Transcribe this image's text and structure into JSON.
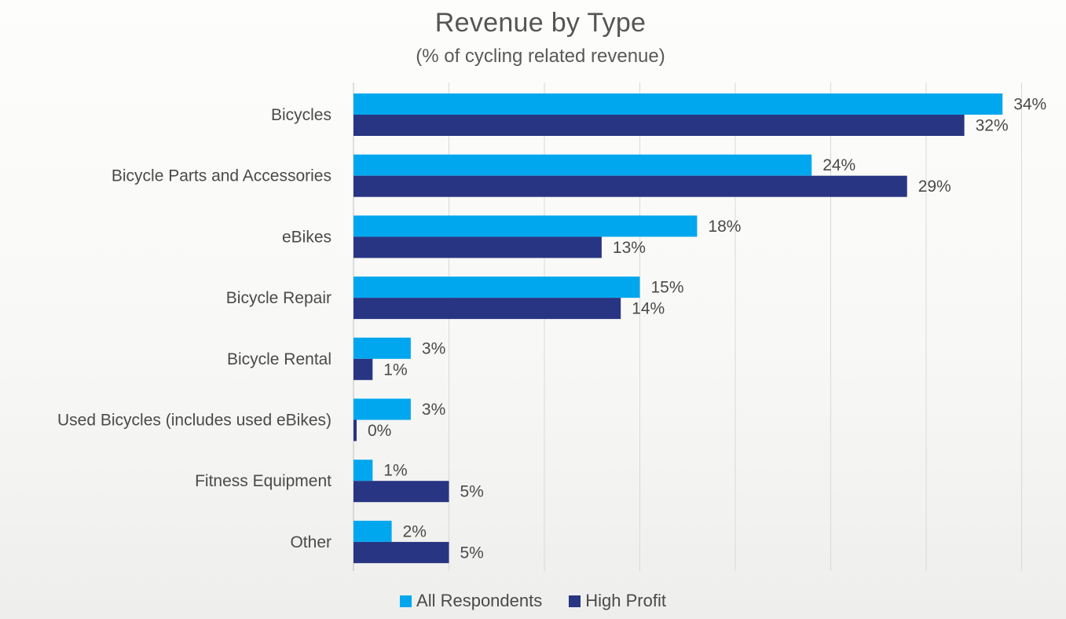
{
  "chart_data": {
    "type": "bar",
    "orientation": "horizontal",
    "title": "Revenue by Type",
    "subtitle": "(% of cycling related revenue)",
    "categories": [
      "Bicycles",
      "Bicycle Parts and Accessories",
      "eBikes",
      "Bicycle Repair",
      "Bicycle Rental",
      "Used Bicycles (includes used eBikes)",
      "Fitness Equipment",
      "Other"
    ],
    "series": [
      {
        "name": "All Respondents",
        "color": "#00a7ee",
        "values": [
          34,
          24,
          18,
          15,
          3,
          3,
          1,
          2
        ],
        "labels": [
          "34%",
          "24%",
          "18%",
          "15%",
          "3%",
          "3%",
          "1%",
          "2%"
        ]
      },
      {
        "name": "High Profit",
        "color": "#283583",
        "values": [
          32,
          29,
          13,
          14,
          1,
          0,
          5,
          5
        ],
        "labels": [
          "32%",
          "29%",
          "13%",
          "14%",
          "1%",
          "0%",
          "5%",
          "5%"
        ]
      }
    ],
    "xlim": [
      0,
      35
    ],
    "grid": true,
    "legend_position": "bottom"
  }
}
